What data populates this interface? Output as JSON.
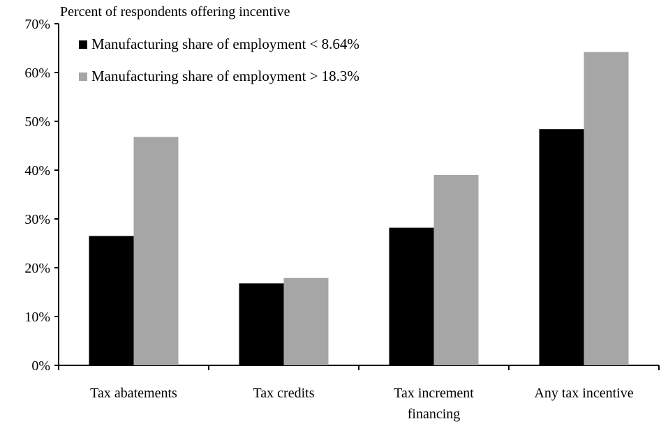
{
  "chart_data": {
    "type": "bar",
    "title": "",
    "ylabel": "Percent of respondents offering incentive",
    "xlabel": "",
    "ylim": [
      0,
      70
    ],
    "yticks": [
      {
        "value": 0,
        "label": "0%"
      },
      {
        "value": 10,
        "label": "10%"
      },
      {
        "value": 20,
        "label": "20%"
      },
      {
        "value": 30,
        "label": "30%"
      },
      {
        "value": 40,
        "label": "40%"
      },
      {
        "value": 50,
        "label": "50%"
      },
      {
        "value": 60,
        "label": "60%"
      },
      {
        "value": 70,
        "label": "70%"
      }
    ],
    "categories": [
      [
        "Tax abatements"
      ],
      [
        "Tax credits"
      ],
      [
        "Tax increment",
        "financing"
      ],
      [
        "Any tax incentive"
      ]
    ],
    "series": [
      {
        "name": "Manufacturing share of employment < 8.64%",
        "color": "#000000",
        "values": [
          26.5,
          16.8,
          28.2,
          48.4
        ]
      },
      {
        "name": "Manufacturing share of employment > 18.3%",
        "color": "#a6a6a6",
        "values": [
          46.8,
          17.9,
          39.0,
          64.2
        ]
      }
    ],
    "grid": false,
    "legend_position": "top-left"
  }
}
